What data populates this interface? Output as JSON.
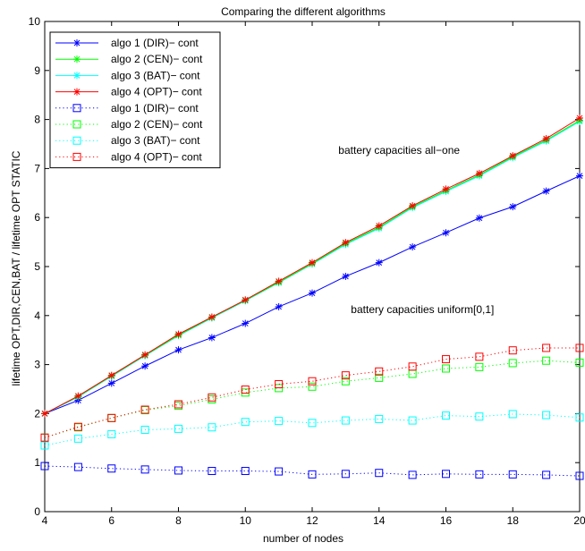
{
  "chart_data": {
    "type": "line",
    "title": "Comparing the different algorithms",
    "xlabel": "number of nodes",
    "ylabel": "lifetime OPT,DIR,CEN,BAT / lifetime OPT STATIC",
    "xlim": [
      4,
      20
    ],
    "ylim": [
      0,
      10
    ],
    "xticks": [
      4,
      6,
      8,
      10,
      12,
      14,
      16,
      18,
      20
    ],
    "yticks": [
      0,
      1,
      2,
      3,
      4,
      5,
      6,
      7,
      8,
      9,
      10
    ],
    "grid": false,
    "legend_position": "top-left",
    "x": [
      4,
      5,
      6,
      7,
      8,
      9,
      10,
      11,
      12,
      13,
      14,
      15,
      16,
      17,
      18,
      19,
      20
    ],
    "annotations": [
      {
        "text": "battery capacities all−one",
        "x": 14.6,
        "y": 7.3
      },
      {
        "text": "battery capacities uniform[0,1]",
        "x": 15.3,
        "y": 4.05
      }
    ],
    "series": [
      {
        "name": "algo 1 (DIR)− cont",
        "color": "#0000ff",
        "line": "solid",
        "marker": "star",
        "values": [
          2.0,
          2.27,
          2.62,
          2.97,
          3.3,
          3.55,
          3.84,
          4.18,
          4.46,
          4.8,
          5.08,
          5.4,
          5.69,
          5.99,
          6.22,
          6.54,
          6.85
        ]
      },
      {
        "name": "algo 2 (CEN)− cont",
        "color": "#00ff00",
        "line": "solid",
        "marker": "star",
        "values": [
          2.0,
          2.35,
          2.77,
          3.19,
          3.6,
          3.96,
          4.31,
          4.68,
          5.06,
          5.47,
          5.8,
          6.22,
          6.55,
          6.87,
          7.24,
          7.58,
          7.98
        ]
      },
      {
        "name": "algo 3 (BAT)− cont",
        "color": "#00ffff",
        "line": "solid",
        "marker": "star",
        "values": [
          2.0,
          2.34,
          2.76,
          3.18,
          3.59,
          3.95,
          4.3,
          4.67,
          5.05,
          5.45,
          5.78,
          6.2,
          6.53,
          6.85,
          7.22,
          7.56,
          7.96
        ]
      },
      {
        "name": "algo 4 (OPT)− cont",
        "color": "#ff0000",
        "line": "solid",
        "marker": "star",
        "values": [
          2.0,
          2.36,
          2.78,
          3.2,
          3.62,
          3.97,
          4.32,
          4.7,
          5.08,
          5.49,
          5.83,
          6.24,
          6.58,
          6.9,
          7.26,
          7.61,
          8.03
        ]
      },
      {
        "name": "algo 1 (DIR)− cont",
        "color": "#0000ff",
        "line": "dotted",
        "marker": "square",
        "values": [
          0.93,
          0.91,
          0.88,
          0.86,
          0.84,
          0.83,
          0.83,
          0.82,
          0.76,
          0.77,
          0.79,
          0.75,
          0.77,
          0.76,
          0.76,
          0.75,
          0.73
        ]
      },
      {
        "name": "algo 2 (CEN)− cont",
        "color": "#00ff00",
        "line": "dotted",
        "marker": "square",
        "values": [
          1.51,
          1.72,
          1.91,
          2.07,
          2.16,
          2.29,
          2.43,
          2.52,
          2.55,
          2.66,
          2.73,
          2.81,
          2.92,
          2.95,
          3.03,
          3.08,
          3.04
        ]
      },
      {
        "name": "algo 3 (BAT)− cont",
        "color": "#00ffff",
        "line": "dotted",
        "marker": "square",
        "values": [
          1.35,
          1.49,
          1.58,
          1.67,
          1.69,
          1.72,
          1.83,
          1.85,
          1.81,
          1.86,
          1.89,
          1.86,
          1.96,
          1.94,
          1.99,
          1.97,
          1.92
        ]
      },
      {
        "name": "algo 4 (OPT)− cont",
        "color": "#ff0000",
        "line": "dotted",
        "marker": "square",
        "values": [
          1.51,
          1.73,
          1.91,
          2.08,
          2.19,
          2.33,
          2.49,
          2.6,
          2.66,
          2.78,
          2.86,
          2.96,
          3.11,
          3.16,
          3.29,
          3.34,
          3.34
        ]
      }
    ]
  }
}
